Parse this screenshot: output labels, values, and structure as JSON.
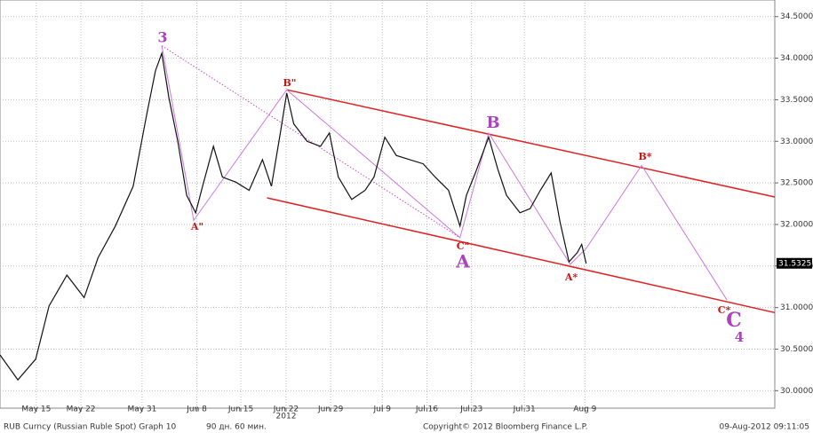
{
  "chart_data": {
    "type": "line",
    "title": "RUB Curncy (Russian Ruble Spot) Graph 10",
    "subtitle": "90 дн. 60 мин.",
    "copyright": "Copyright© 2012 Bloomberg Finance L.P.",
    "timestamp": "09-Aug-2012 09:11:05",
    "year_label": "2012",
    "last_price": {
      "value": 31.5325,
      "label": "31.5325"
    },
    "x": [
      130.3,
      133.1,
      135.9,
      138.0,
      140.8,
      143.5,
      145.7,
      148.4,
      151.2,
      153.3,
      154.7,
      155.7,
      156.8,
      158.2,
      159.6,
      161.0,
      162.1,
      163.8,
      165.2,
      167.3,
      169.4,
      171.5,
      172.9,
      174.3,
      175.3,
      176.4,
      178.5,
      180.6,
      182.0,
      183.4,
      185.5,
      187.6,
      189.0,
      190.7,
      192.5,
      194.6,
      196.7,
      198.6,
      200.7,
      202.5,
      203.5,
      204.9,
      207.0,
      208.4,
      209.8,
      211.9,
      213.5,
      215.1,
      216.8,
      218.2,
      219.6,
      220.9,
      221.6,
      222.3
    ],
    "series": [
      {
        "name": "RUB Curncy",
        "color": "#111111",
        "values": [
          30.43,
          30.13,
          30.38,
          31.02,
          31.39,
          31.12,
          31.6,
          31.98,
          32.46,
          33.31,
          33.85,
          34.06,
          33.53,
          33.0,
          32.35,
          32.14,
          32.46,
          32.94,
          32.57,
          32.51,
          32.41,
          32.78,
          32.46,
          33.1,
          33.58,
          33.21,
          33.0,
          32.94,
          33.1,
          32.57,
          32.3,
          32.41,
          32.57,
          33.05,
          32.83,
          32.78,
          32.73,
          32.57,
          32.41,
          31.98,
          32.35,
          32.62,
          33.05,
          32.67,
          32.35,
          32.14,
          32.19,
          32.41,
          32.62,
          32.03,
          31.55,
          31.66,
          31.76,
          31.53
        ]
      }
    ],
    "channels": [
      {
        "color": "#e02020",
        "x": [
          175.3,
          251.9
        ],
        "values": [
          33.62,
          32.33
        ]
      },
      {
        "color": "#e02020",
        "x": [
          172.2,
          251.9
        ],
        "values": [
          32.32,
          30.94
        ]
      }
    ],
    "waves": [
      {
        "color": "#cc77dd",
        "dotted": false,
        "x": [
          155.7,
          160.7,
          175.3,
          202.5,
          207.0,
          219.8,
          222.3,
          231.0,
          244.4
        ],
        "values": [
          34.15,
          32.05,
          33.62,
          31.84,
          33.1,
          31.52,
          31.71,
          32.71,
          31.09
        ]
      },
      {
        "color": "#cc44cc",
        "dotted": true,
        "x": [
          155.7,
          202.5
        ],
        "values": [
          34.15,
          31.84
        ]
      }
    ],
    "annotations": [
      {
        "text": "3",
        "color": "#aa44bb"
      },
      {
        "text": "A\"",
        "color": "#cc1111"
      },
      {
        "text": "B\"",
        "color": "#cc1111"
      },
      {
        "text": "C\"",
        "color": "#cc1111"
      },
      {
        "text": "A",
        "color": "#aa44bb"
      },
      {
        "text": "B",
        "color": "#aa44bb"
      },
      {
        "text": "A*",
        "color": "#cc1111"
      },
      {
        "text": "B*",
        "color": "#cc1111"
      },
      {
        "text": "C*",
        "color": "#cc1111"
      },
      {
        "text": "C",
        "color": "#aa44bb"
      },
      {
        "text": "4",
        "color": "#aa44bb"
      }
    ],
    "xlim": [
      130.3,
      251.9
    ],
    "ylim": [
      29.79,
      34.7
    ],
    "xticks": [
      {
        "value": 136,
        "label": "May 15"
      },
      {
        "value": 143,
        "label": "May 22"
      },
      {
        "value": 152.6,
        "label": "May 31"
      },
      {
        "value": 161.2,
        "label": "Jun 8"
      },
      {
        "value": 168.1,
        "label": "Jun 15"
      },
      {
        "value": 175.2,
        "label": "Jun 22"
      },
      {
        "value": 182.2,
        "label": "Jun 29"
      },
      {
        "value": 190.3,
        "label": "Jul 9"
      },
      {
        "value": 197.3,
        "label": "Jul 16"
      },
      {
        "value": 204.3,
        "label": "Jul 23"
      },
      {
        "value": 212.6,
        "label": "Jul 31"
      },
      {
        "value": 222.1,
        "label": "Aug 9"
      }
    ],
    "yticks": [
      {
        "value": 30,
        "label": "30.0000"
      },
      {
        "value": 30.5,
        "label": "30.5000"
      },
      {
        "value": 31,
        "label": "31.0000"
      },
      {
        "value": 31.5,
        "label": "31.5000"
      },
      {
        "value": 32,
        "label": "32.0000"
      },
      {
        "value": 32.5,
        "label": "32.5000"
      },
      {
        "value": 33,
        "label": "33.0000"
      },
      {
        "value": 33.5,
        "label": "33.5000"
      },
      {
        "value": 34,
        "label": "34.0000"
      },
      {
        "value": 34.5,
        "label": "34.5000"
      }
    ],
    "grid": true
  }
}
